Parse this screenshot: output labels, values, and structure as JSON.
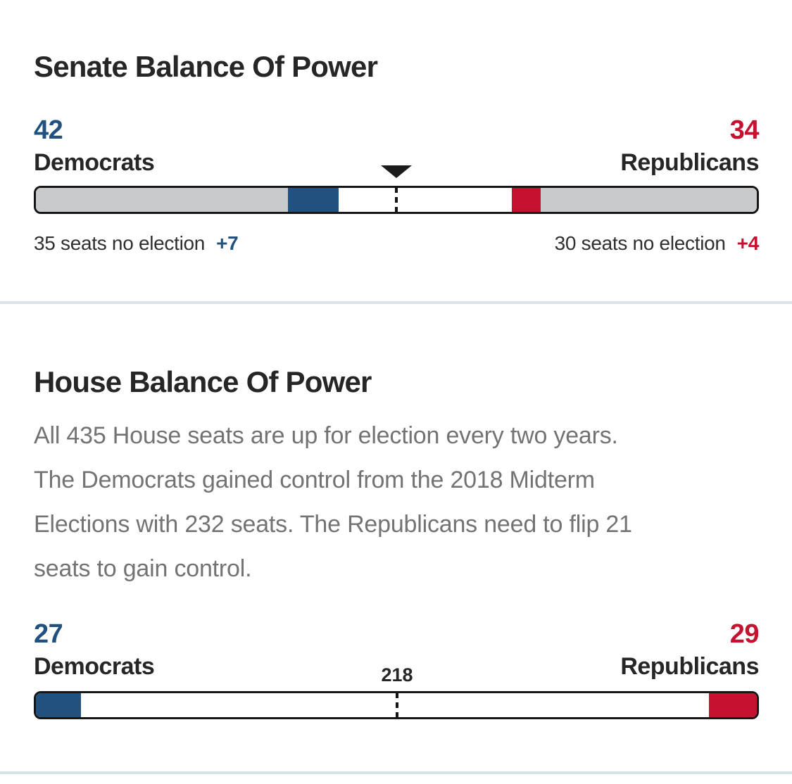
{
  "colors": {
    "dem_blue": "#21527f",
    "rep_red": "#c51230",
    "no_election_gray": "#c9cacb",
    "undecided_white": "#ffffff"
  },
  "senate": {
    "title": "Senate Balance Of Power",
    "dem": {
      "count": "42",
      "label": "Democrats",
      "note": "35 seats no election",
      "gain": "+7"
    },
    "rep": {
      "count": "34",
      "label": "Republicans",
      "note": "30 seats no election",
      "gain": "+4"
    }
  },
  "house": {
    "title": "House Balance Of Power",
    "description": "All 435 House seats are up for election every two years. The Democrats gained control from the 2018 Midterm Elections with 232 seats. The Republicans need to flip 21 seats to gain control.",
    "dem": {
      "count": "27",
      "label": "Democrats"
    },
    "rep": {
      "count": "29",
      "label": "Republicans"
    },
    "majority_label": "218"
  },
  "chart_data": [
    {
      "type": "bar",
      "title": "Senate Balance Of Power",
      "total_seats": 100,
      "majority_seats": 50,
      "democrats_won": 42,
      "republicans_won": 34,
      "dem_seats_no_election": 35,
      "rep_seats_no_election": 30,
      "dem_gain": 7,
      "rep_gain": 4,
      "segments": [
        {
          "name": "dem-no-election",
          "seats": 35,
          "color": "no_election_gray"
        },
        {
          "name": "dem-won",
          "seats": 7,
          "color": "dem_blue"
        },
        {
          "name": "undecided",
          "seats": 24,
          "color": "undecided_white"
        },
        {
          "name": "rep-won",
          "seats": 4,
          "color": "rep_red"
        },
        {
          "name": "rep-no-election",
          "seats": 30,
          "color": "no_election_gray"
        }
      ]
    },
    {
      "type": "bar",
      "title": "House Balance Of Power",
      "total_seats": 435,
      "majority_seats": 218,
      "democrats_won": 27,
      "republicans_won": 29,
      "segments": [
        {
          "name": "dem-won",
          "seats": 27,
          "color": "dem_blue"
        },
        {
          "name": "undecided",
          "seats": 379,
          "color": "undecided_white"
        },
        {
          "name": "rep-won",
          "seats": 29,
          "color": "rep_red"
        }
      ]
    }
  ]
}
